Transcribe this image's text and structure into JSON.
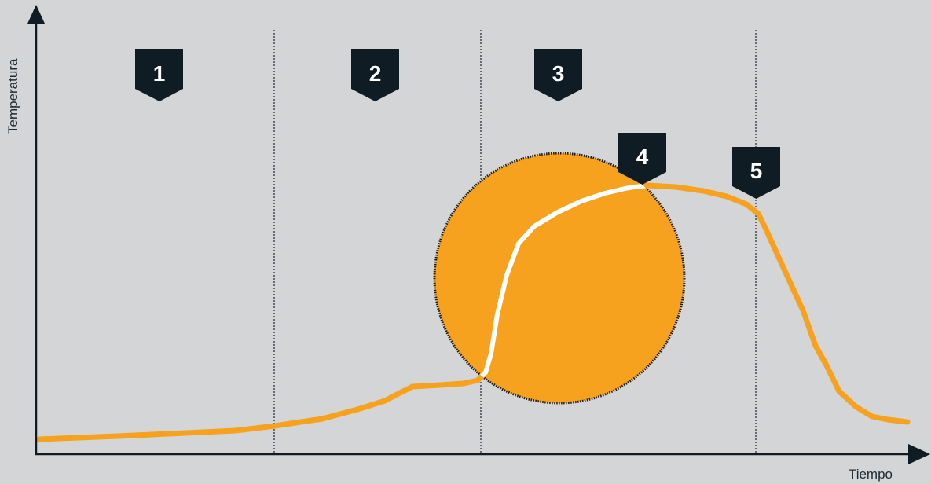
{
  "axes": {
    "y_label": "Temperatura",
    "x_label": "Tiempo"
  },
  "phases": [
    "1",
    "2",
    "3",
    "4",
    "5"
  ],
  "colors": {
    "background": "#d4d5d7",
    "curve": "#f7a21f",
    "highlight_curve": "#ffffff",
    "badge": "#0f1c24",
    "axis": "#0f1c24"
  }
}
